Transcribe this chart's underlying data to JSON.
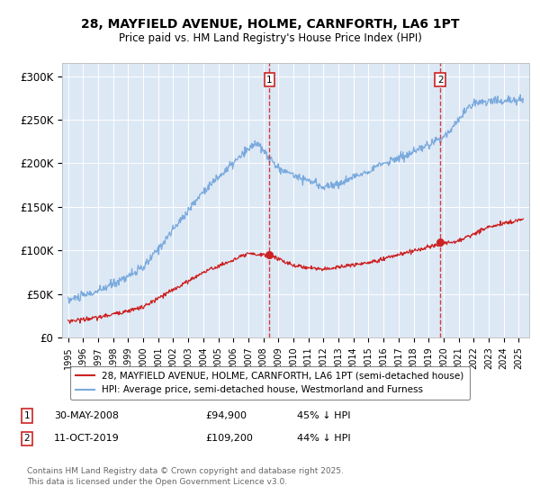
{
  "title": "28, MAYFIELD AVENUE, HOLME, CARNFORTH, LA6 1PT",
  "subtitle": "Price paid vs. HM Land Registry's House Price Index (HPI)",
  "background_color": "#ffffff",
  "plot_bg_color": "#dde8f5",
  "yticks": [
    0,
    50000,
    100000,
    150000,
    200000,
    250000,
    300000
  ],
  "ytick_labels": [
    "£0",
    "£50K",
    "£100K",
    "£150K",
    "£200K",
    "£250K",
    "£300K"
  ],
  "xmin": 1994.6,
  "xmax": 2025.7,
  "ymin": 0,
  "ymax": 315000,
  "hpi_color": "#7aaadd",
  "price_color": "#cc2222",
  "dashed_line_color": "#cc2222",
  "transaction1": {
    "date": 2008.41,
    "price": 94900,
    "label": "1"
  },
  "transaction2": {
    "date": 2019.78,
    "price": 109200,
    "label": "2"
  },
  "legend_line1": "28, MAYFIELD AVENUE, HOLME, CARNFORTH, LA6 1PT (semi-detached house)",
  "legend_line2": "HPI: Average price, semi-detached house, Westmorland and Furness",
  "annotation1_date": "30-MAY-2008",
  "annotation1_price": "£94,900",
  "annotation1_pct": "45% ↓ HPI",
  "annotation2_date": "11-OCT-2019",
  "annotation2_price": "£109,200",
  "annotation2_pct": "44% ↓ HPI",
  "footer": "Contains HM Land Registry data © Crown copyright and database right 2025.\nThis data is licensed under the Open Government Licence v3.0."
}
